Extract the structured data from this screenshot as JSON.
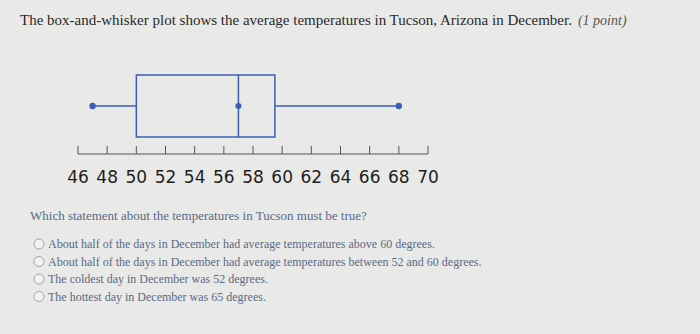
{
  "header": {
    "text": "The box-and-whisker plot shows the average temperatures in Tucson, Arizona in December.",
    "points": "(1 point)"
  },
  "chart_data": {
    "type": "box",
    "orientation": "horizontal",
    "color": "#3b5fb5",
    "values": {
      "min": 47,
      "q1": 50,
      "median": 57,
      "q3": 59.5,
      "max": 68
    },
    "xlim": [
      46,
      70
    ],
    "xticks": [
      46,
      48,
      50,
      52,
      54,
      56,
      58,
      60,
      62,
      64,
      66,
      68,
      70
    ]
  },
  "question": {
    "text": "Which statement about the temperatures in Tucson must be true?",
    "options": [
      "About half of the days in December had average temperatures above 60 degrees.",
      "About half of the days in December had average temperatures between 52 and 60 degrees.",
      "The coldest day in December was 52 degrees.",
      "The hottest day in December was 65 degrees."
    ]
  }
}
